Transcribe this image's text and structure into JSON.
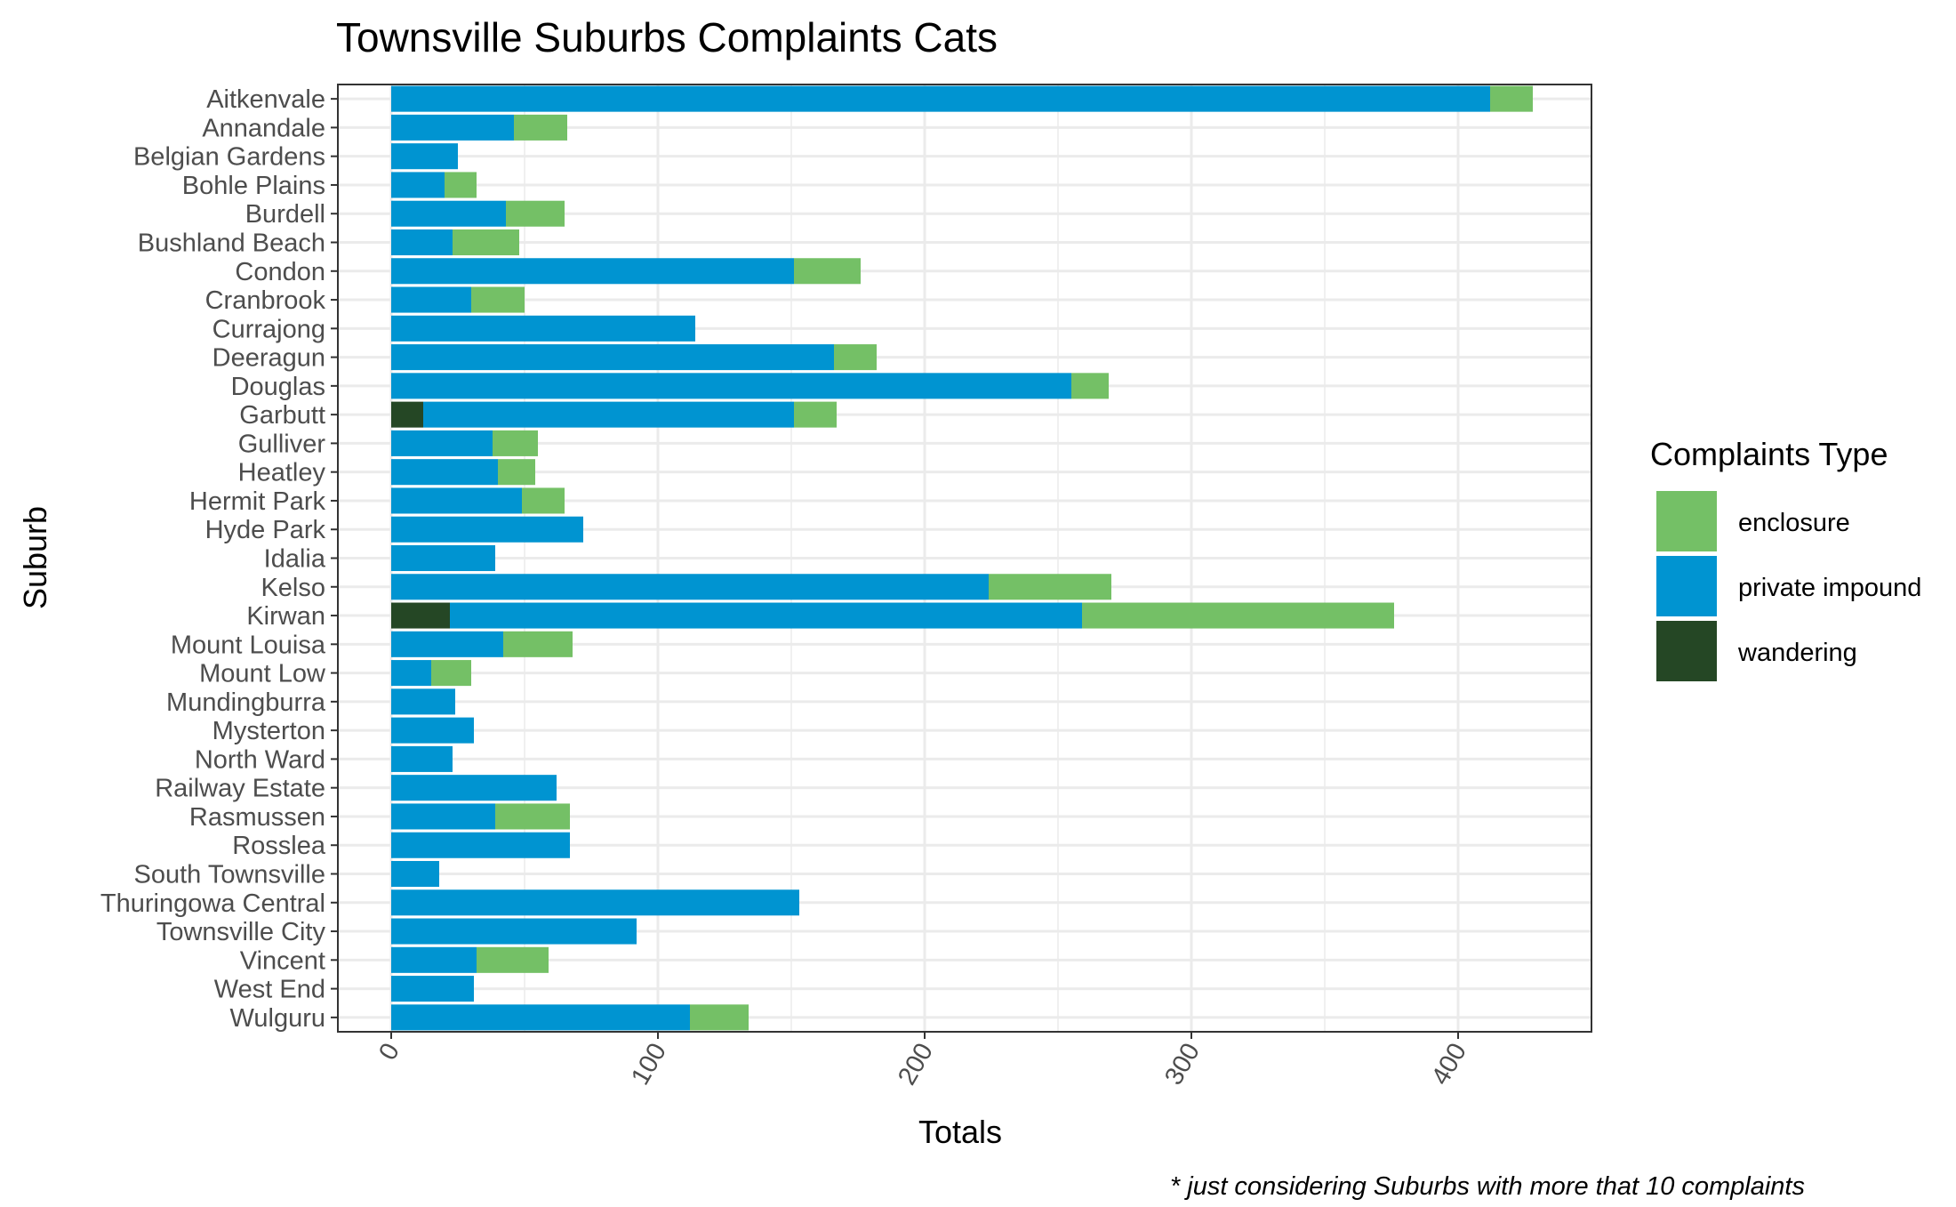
{
  "chart_data": {
    "type": "bar",
    "orientation": "horizontal",
    "stacked": true,
    "title": "Townsville Suburbs Complaints Cats",
    "xlabel": "Totals",
    "ylabel": "Suburb",
    "caption": "* just considering Suburbs with more that 10 complaints",
    "xlim": [
      -20,
      450
    ],
    "xticks": [
      0,
      100,
      200,
      300,
      400
    ],
    "xtick_labels": [
      "0",
      "100",
      "200",
      "300",
      "400"
    ],
    "grid": true,
    "legend": {
      "title": "Complaints Type",
      "position": "right",
      "entries": [
        "enclosure",
        "private impound",
        "wandering"
      ]
    },
    "categories": [
      "Aitkenvale",
      "Annandale",
      "Belgian Gardens",
      "Bohle Plains",
      "Burdell",
      "Bushland Beach",
      "Condon",
      "Cranbrook",
      "Currajong",
      "Deeragun",
      "Douglas",
      "Garbutt",
      "Gulliver",
      "Heatley",
      "Hermit Park",
      "Hyde Park",
      "Idalia",
      "Kelso",
      "Kirwan",
      "Mount Louisa",
      "Mount Low",
      "Mundingburra",
      "Mysterton",
      "North Ward",
      "Railway Estate",
      "Rasmussen",
      "Rosslea",
      "South Townsville",
      "Thuringowa Central",
      "Townsville City",
      "Vincent",
      "West End",
      "Wulguru"
    ],
    "series": [
      {
        "name": "wandering",
        "color": "#254725",
        "values": [
          0,
          0,
          0,
          0,
          0,
          0,
          0,
          0,
          0,
          0,
          0,
          12,
          0,
          0,
          0,
          0,
          0,
          0,
          22,
          0,
          0,
          0,
          0,
          0,
          0,
          0,
          0,
          0,
          0,
          0,
          0,
          0,
          0
        ]
      },
      {
        "name": "private impound",
        "color": "#0094d1",
        "values": [
          412,
          46,
          25,
          20,
          43,
          23,
          151,
          30,
          114,
          166,
          255,
          139,
          38,
          40,
          49,
          72,
          39,
          224,
          237,
          42,
          15,
          24,
          31,
          23,
          62,
          39,
          67,
          18,
          153,
          92,
          32,
          31,
          112
        ]
      },
      {
        "name": "enclosure",
        "color": "#74c066",
        "values": [
          16,
          20,
          0,
          12,
          22,
          25,
          25,
          20,
          0,
          16,
          14,
          16,
          17,
          14,
          16,
          0,
          0,
          46,
          117,
          26,
          15,
          0,
          0,
          0,
          0,
          28,
          0,
          0,
          0,
          0,
          27,
          0,
          22
        ]
      }
    ]
  }
}
